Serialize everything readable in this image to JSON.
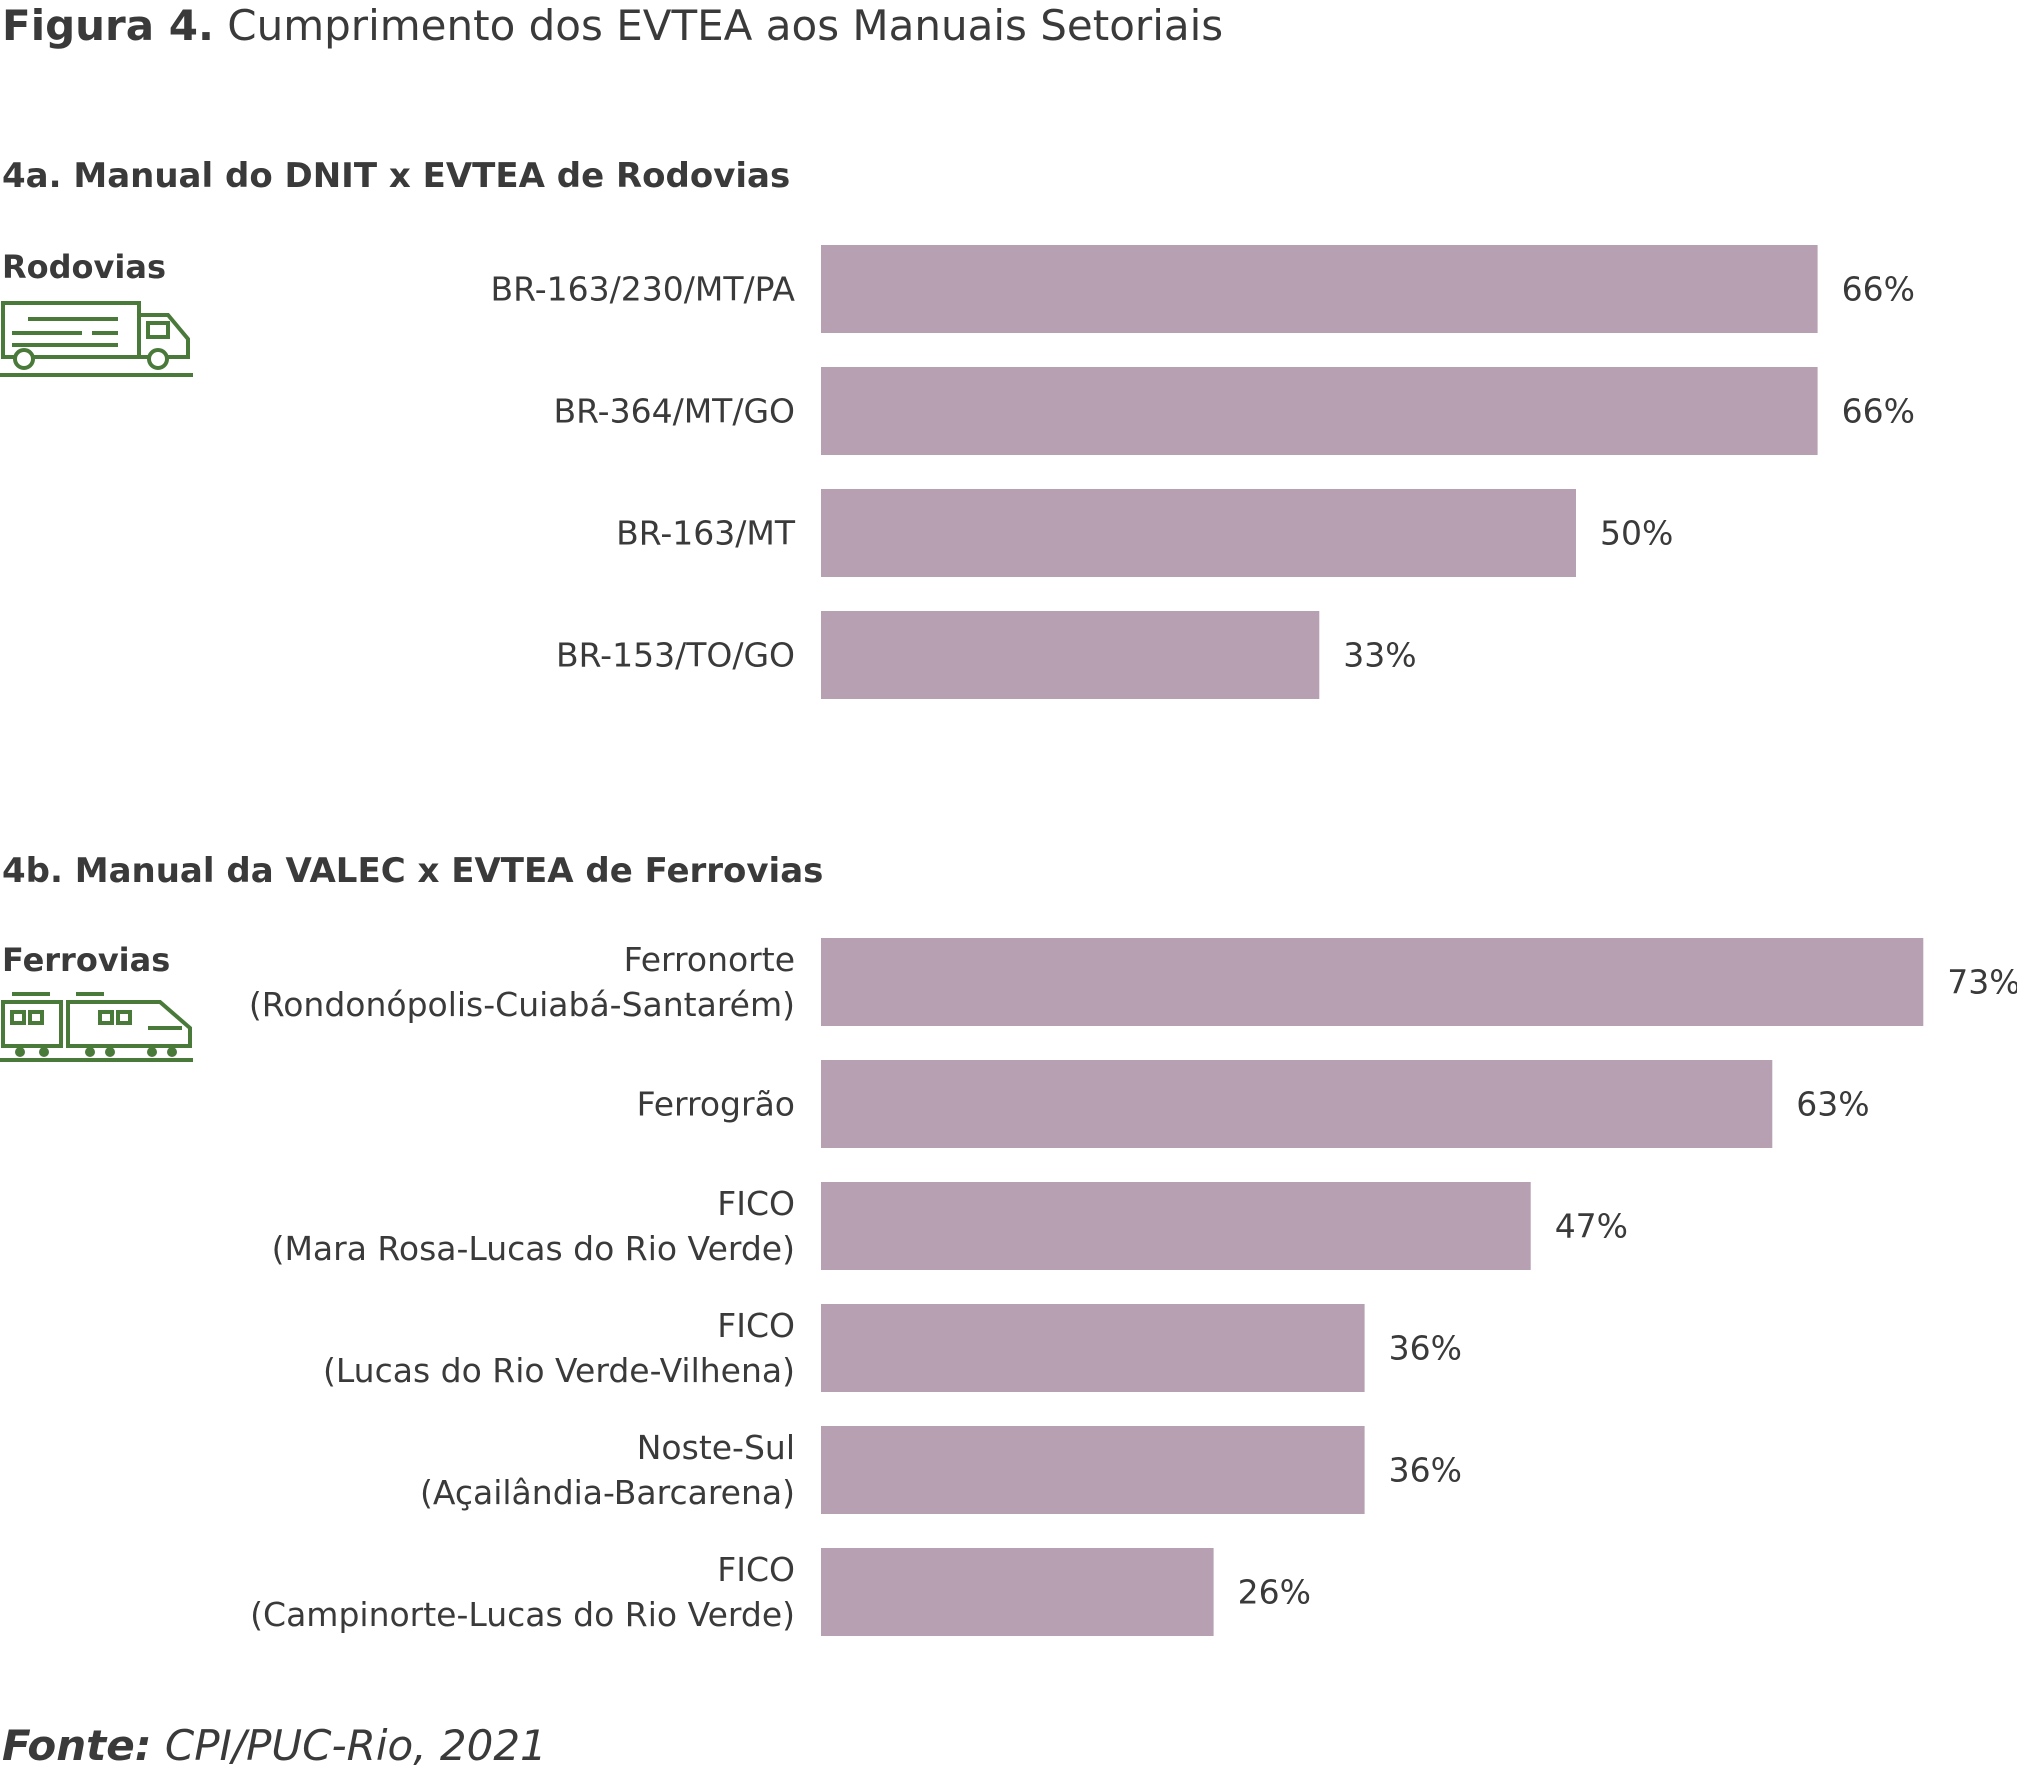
{
  "figure": {
    "prefix": "Figura 4.",
    "title": "Cumprimento dos EVTEA aos Manuais Setoriais"
  },
  "source": {
    "prefix": "Fonte:",
    "text": "CPI/PUC-Rio, 2021"
  },
  "colors": {
    "bar": "#b7a0b1",
    "icon": "#4a7a3a",
    "text": "#3a3a3a"
  },
  "chart_data": [
    {
      "type": "bar",
      "orientation": "horizontal",
      "title": "4a. Manual do DNIT x EVTEA de Rodovias",
      "section_label": "Rodovias",
      "icon": "truck-icon",
      "categories": [
        [
          "BR-163/230/MT/PA"
        ],
        [
          "BR-364/MT/GO"
        ],
        [
          "BR-163/MT"
        ],
        [
          "BR-153/TO/GO"
        ]
      ],
      "values": [
        66,
        66,
        50,
        33
      ],
      "value_labels": [
        "66%",
        "66%",
        "50%",
        "33%"
      ],
      "unit": "%",
      "xlim": [
        0,
        100
      ],
      "grid": false
    },
    {
      "type": "bar",
      "orientation": "horizontal",
      "title": "4b. Manual da VALEC x EVTEA de Ferrovias",
      "section_label": "Ferrovias",
      "icon": "train-icon",
      "categories": [
        [
          "Ferronorte",
          "(Rondonópolis-Cuiabá-Santarém)"
        ],
        [
          "Ferrogrão"
        ],
        [
          "FICO",
          "(Mara Rosa-Lucas do Rio Verde)"
        ],
        [
          "FICO",
          "(Lucas do Rio Verde-Vilhena)"
        ],
        [
          "Noste-Sul",
          "(Açailândia-Barcarena)"
        ],
        [
          "FICO",
          "(Campinorte-Lucas do Rio Verde)"
        ]
      ],
      "values": [
        73,
        63,
        47,
        36,
        36,
        26
      ],
      "value_labels": [
        "73%",
        "63%",
        "47%",
        "36%",
        "36%",
        "26%"
      ],
      "unit": "%",
      "xlim": [
        0,
        100
      ],
      "grid": false
    }
  ]
}
